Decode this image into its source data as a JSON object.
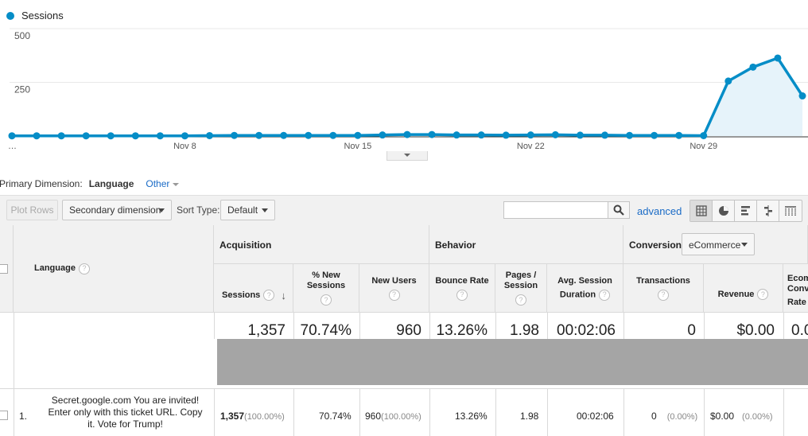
{
  "chart_data": {
    "type": "area",
    "series": [
      {
        "name": "Sessions",
        "values": [
          1,
          1,
          1,
          1,
          1,
          1,
          1,
          1,
          2,
          3,
          3,
          3,
          3,
          3,
          3,
          5,
          7,
          7,
          5,
          5,
          4,
          5,
          6,
          4,
          4,
          3,
          3,
          3,
          2,
          256,
          321,
          363,
          187
        ]
      }
    ],
    "x_tick_labels": [
      "…",
      "Nov 8",
      "Nov 15",
      "Nov 22",
      "Nov 29"
    ],
    "y_tick_labels": [
      "500",
      "250"
    ],
    "ylim": [
      0,
      500
    ],
    "color": "#058dc7",
    "fill_color": "#e6f3fa",
    "grid": true,
    "legend": "top-left"
  },
  "legend": {
    "label": "Sessions"
  },
  "dimension": {
    "label": "Primary Dimension:",
    "selected": "Language",
    "other": "Other"
  },
  "toolbar": {
    "plot_rows": "Plot Rows",
    "secondary_dimension": "Secondary dimension",
    "sort_type_label": "Sort Type:",
    "sort_type_value": "Default",
    "search_value": "",
    "advanced": "advanced",
    "views": [
      "table-view-icon",
      "pie-view-icon",
      "bar-view-icon",
      "comparison-view-icon",
      "pivot-view-icon"
    ]
  },
  "table": {
    "dimension_header": "Language",
    "groups": {
      "acquisition": "Acquisition",
      "behavior": "Behavior",
      "conversions": "Conversions"
    },
    "conversion_select": "eCommerce",
    "columns": {
      "sessions": "Sessions",
      "pct_new_sessions_1": "% New",
      "pct_new_sessions_2": "Sessions",
      "new_users": "New Users",
      "bounce_rate": "Bounce Rate",
      "pages_session_1": "Pages /",
      "pages_session_2": "Session",
      "avg_duration_1": "Avg. Session",
      "avg_duration_2": "Duration",
      "transactions": "Transactions",
      "revenue": "Revenue",
      "ecom_1": "Ecom",
      "ecom_2": "Conv",
      "ecom_3": "Rate"
    },
    "totals": {
      "sessions": "1,357",
      "pct_new_sessions": "70.74%",
      "new_users": "960",
      "bounce_rate": "13.26%",
      "pages_session": "1.98",
      "avg_duration": "00:02:06",
      "transactions": "0",
      "revenue": "$0.00",
      "ecom_rate": "0.0"
    },
    "rows": [
      {
        "index": "1.",
        "language_line1": "Secret.google.com You are invited!",
        "language_line2": "Enter only with this ticket URL. Copy",
        "language_line3": "it. Vote for Trump!",
        "sessions": "1,357",
        "sessions_pct": "(100.00%)",
        "pct_new_sessions": "70.74%",
        "new_users": "960",
        "new_users_pct": "(100.00%)",
        "bounce_rate": "13.26%",
        "pages_session": "1.98",
        "avg_duration": "00:02:06",
        "transactions": "0",
        "transactions_pct": "(0.00%)",
        "revenue": "$0.00",
        "revenue_pct": "(0.00%)"
      }
    ]
  }
}
